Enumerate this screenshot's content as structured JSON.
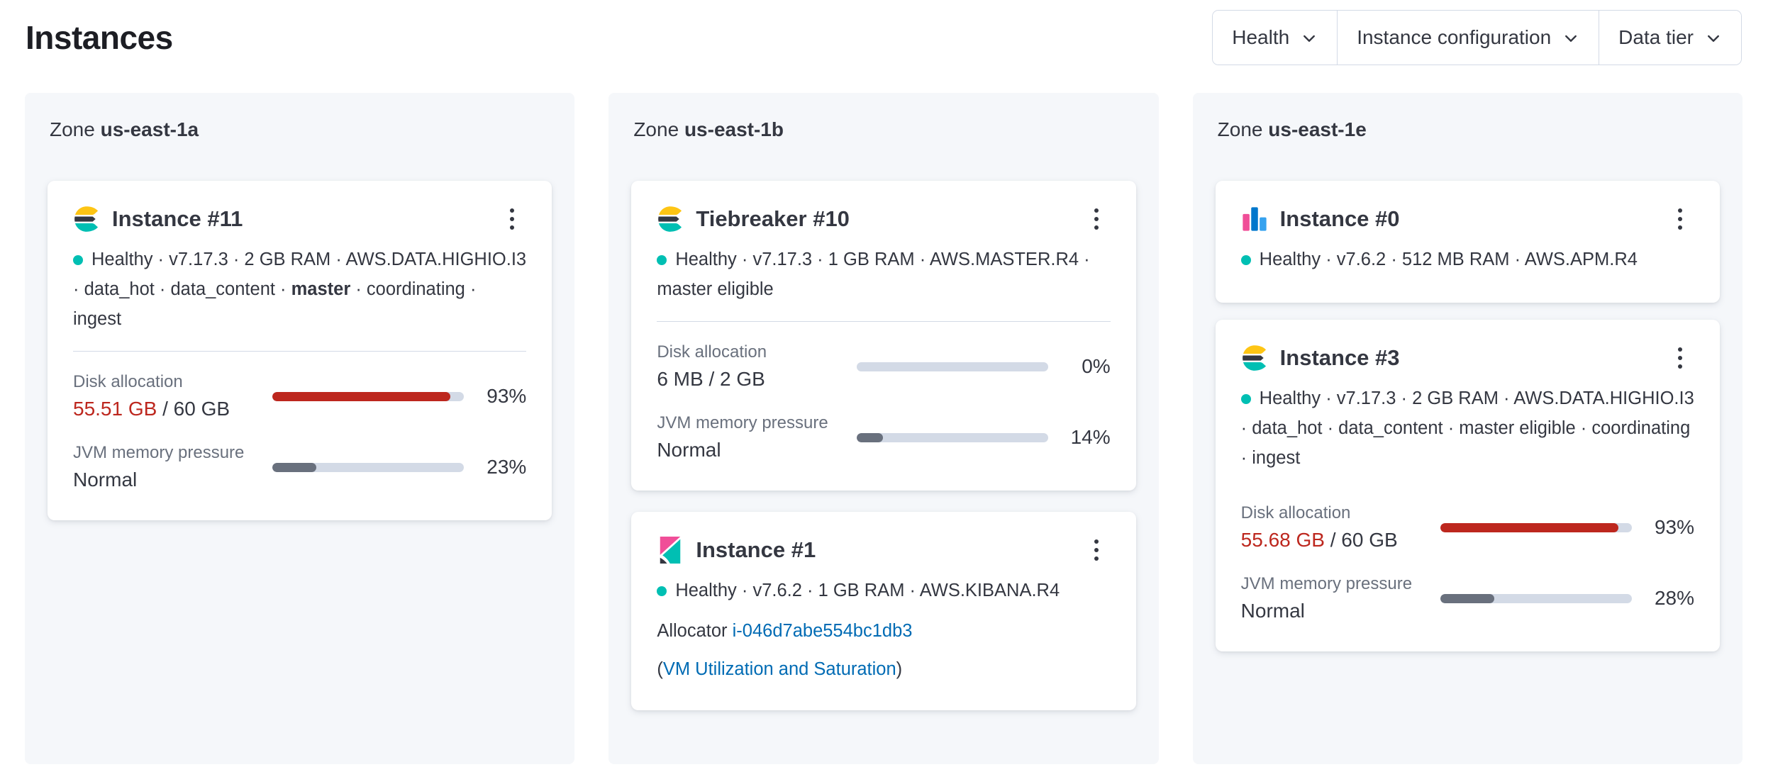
{
  "page": {
    "title": "Instances"
  },
  "filters": {
    "items": [
      {
        "label": "Health"
      },
      {
        "label": "Instance configuration"
      },
      {
        "label": "Data tier"
      }
    ]
  },
  "colors": {
    "danger": "#BD271E",
    "healthy_dot": "#00BFB3",
    "link": "#006BB4",
    "bar_track": "#D3DAE6",
    "jvm_bar_fill": "#69707D"
  },
  "zones": [
    {
      "label": "Zone",
      "name": "us-east-1a",
      "cards": [
        {
          "icon": "elasticsearch-logo",
          "title": "Instance #11",
          "meta_pre": "Healthy · v7.17.3 · 2 GB RAM · AWS.DATA.HIGHIO.I3 · data_hot · data_content · ",
          "meta_bold": "master",
          "meta_post": " · coordinating · ingest",
          "metrics": [
            {
              "label": "Disk allocation",
              "value_primary": "55.51 GB",
              "value_rest": " / 60 GB",
              "percent": "93%",
              "bar": 93
            },
            {
              "label": "JVM memory pressure",
              "value_primary": "Normal",
              "percent": "23%",
              "bar": 23
            }
          ]
        }
      ]
    },
    {
      "label": "Zone",
      "name": "us-east-1b",
      "cards": [
        {
          "icon": "elasticsearch-logo",
          "title": "Tiebreaker #10",
          "meta_pre": "Healthy · v7.17.3 · 1 GB RAM · AWS.MASTER.R4 · master eligible",
          "metrics": [
            {
              "label": "Disk allocation",
              "value_primary": "6 MB",
              "value_rest": " / 2 GB",
              "percent": "0%",
              "bar": 0
            },
            {
              "label": "JVM memory pressure",
              "value_primary": "Normal",
              "percent": "14%",
              "bar": 14
            }
          ]
        },
        {
          "icon": "kibana-logo",
          "title": "Instance #1",
          "meta_pre": "Healthy · v7.6.2 · 1 GB RAM · AWS.KIBANA.R4",
          "allocator_label": "Allocator",
          "allocator_link": "i-046d7abe554bc1db3",
          "vm_open": "(",
          "vm_link": "VM Utilization and Saturation",
          "vm_close": ")"
        }
      ]
    },
    {
      "label": "Zone",
      "name": "us-east-1e",
      "cards": [
        {
          "icon": "apm-logo",
          "title": "Instance #0",
          "meta_pre": "Healthy · v7.6.2 · 512 MB RAM · AWS.APM.R4"
        },
        {
          "icon": "elasticsearch-logo",
          "title": "Instance #3",
          "meta_pre": "Healthy · v7.17.3 · 2 GB RAM · AWS.DATA.HIGHIO.I3 · data_hot · data_content · master eligible · coordinating · ingest",
          "metrics": [
            {
              "label": "Disk allocation",
              "value_primary": "55.68 GB",
              "value_rest": " / 60 GB",
              "percent": "93%",
              "bar": 93
            },
            {
              "label": "JVM memory pressure",
              "value_primary": "Normal",
              "percent": "28%",
              "bar": 28
            }
          ]
        }
      ]
    }
  ]
}
